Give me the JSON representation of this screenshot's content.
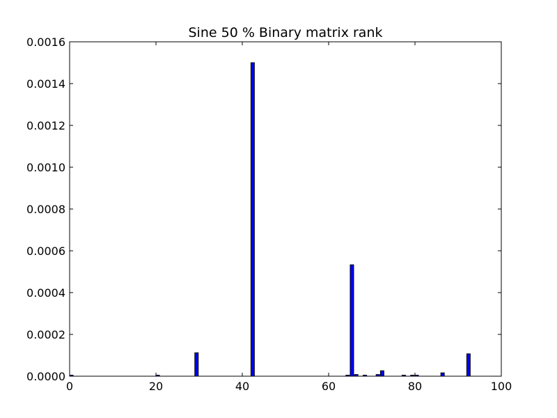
{
  "chart_data": {
    "type": "bar",
    "title": "Sine 50 % Binary matrix rank",
    "xlabel": "",
    "ylabel": "",
    "xlim": [
      0,
      100
    ],
    "ylim": [
      0,
      0.0016
    ],
    "grid": false,
    "bar_color": "#0000ff",
    "bar_edge_color": "#000000",
    "x_ticks": [
      0,
      20,
      40,
      60,
      80,
      100
    ],
    "x_tick_labels": [
      "0",
      "20",
      "40",
      "60",
      "80",
      "100"
    ],
    "y_ticks": [
      0,
      0.0002,
      0.0004,
      0.0006,
      0.0008,
      0.001,
      0.0012,
      0.0014,
      0.0016
    ],
    "y_tick_labels": [
      "0.0000",
      "0.0002",
      "0.0004",
      "0.0006",
      "0.0008",
      "0.0010",
      "0.0012",
      "0.0014",
      "0.0016"
    ],
    "bar_width": 0.8,
    "bars": [
      {
        "x": 0,
        "value": 5e-06
      },
      {
        "x": 20,
        "value": 5e-06
      },
      {
        "x": 29,
        "value": 0.000112
      },
      {
        "x": 42,
        "value": 0.0015
      },
      {
        "x": 64,
        "value": 5e-06
      },
      {
        "x": 65,
        "value": 0.000533
      },
      {
        "x": 66,
        "value": 8e-06
      },
      {
        "x": 68,
        "value": 5e-06
      },
      {
        "x": 71,
        "value": 8e-06
      },
      {
        "x": 72,
        "value": 2.6e-05
      },
      {
        "x": 77,
        "value": 5e-06
      },
      {
        "x": 79,
        "value": 3e-06
      },
      {
        "x": 80,
        "value": 3e-06
      },
      {
        "x": 86,
        "value": 1.6e-05
      },
      {
        "x": 92,
        "value": 0.000107
      }
    ]
  }
}
